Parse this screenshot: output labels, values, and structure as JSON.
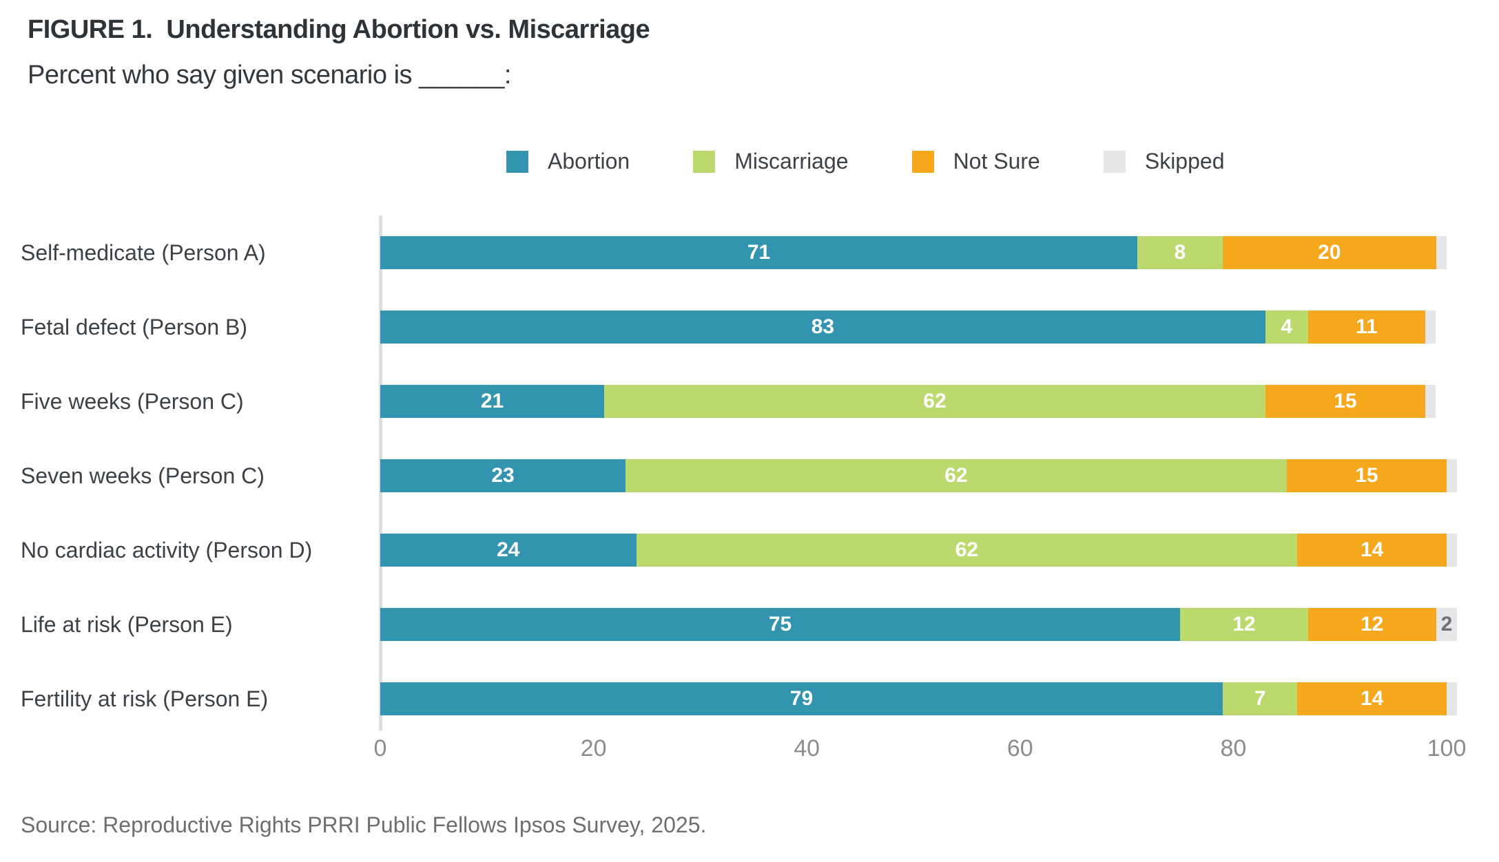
{
  "header": {
    "title": "FIGURE 1.  Understanding Abortion vs. Miscarriage",
    "subtitle": "Percent who say given scenario is ______:"
  },
  "source": "Source: Reproductive Rights PRRI Public Fellows Ipsos Survey, 2025.",
  "chart_data": {
    "type": "bar",
    "orientation": "horizontal-stacked",
    "title": "FIGURE 1.  Understanding Abortion vs. Miscarriage",
    "subtitle": "Percent who say given scenario is ______:",
    "legend_position": "top",
    "grid": false,
    "xlim": [
      0,
      100
    ],
    "xticks": [
      0,
      20,
      40,
      60,
      80,
      100
    ],
    "value_label_min": 2,
    "categories": [
      "Self-medicate (Person A)",
      "Fetal defect (Person B)",
      "Five weeks (Person C)",
      "Seven weeks (Person C)",
      "No cardiac activity (Person D)",
      "Life at risk (Person E)",
      "Fertility at risk (Person E)"
    ],
    "series": [
      {
        "name": "Abortion",
        "color": "#3294ae",
        "label_color": "#ffffff",
        "values": [
          71,
          83,
          21,
          23,
          24,
          75,
          79
        ]
      },
      {
        "name": "Miscarriage",
        "color": "#bcd96e",
        "label_color": "#ffffff",
        "values": [
          8,
          4,
          62,
          62,
          62,
          12,
          7
        ]
      },
      {
        "name": "Not Sure",
        "color": "#f6a81d",
        "label_color": "#ffffff",
        "values": [
          20,
          11,
          15,
          15,
          14,
          12,
          14
        ]
      },
      {
        "name": "Skipped",
        "color": "#e5e6e8",
        "label_color": "#6f7174",
        "values": [
          1,
          1,
          1,
          1,
          1,
          2,
          1
        ]
      }
    ]
  }
}
